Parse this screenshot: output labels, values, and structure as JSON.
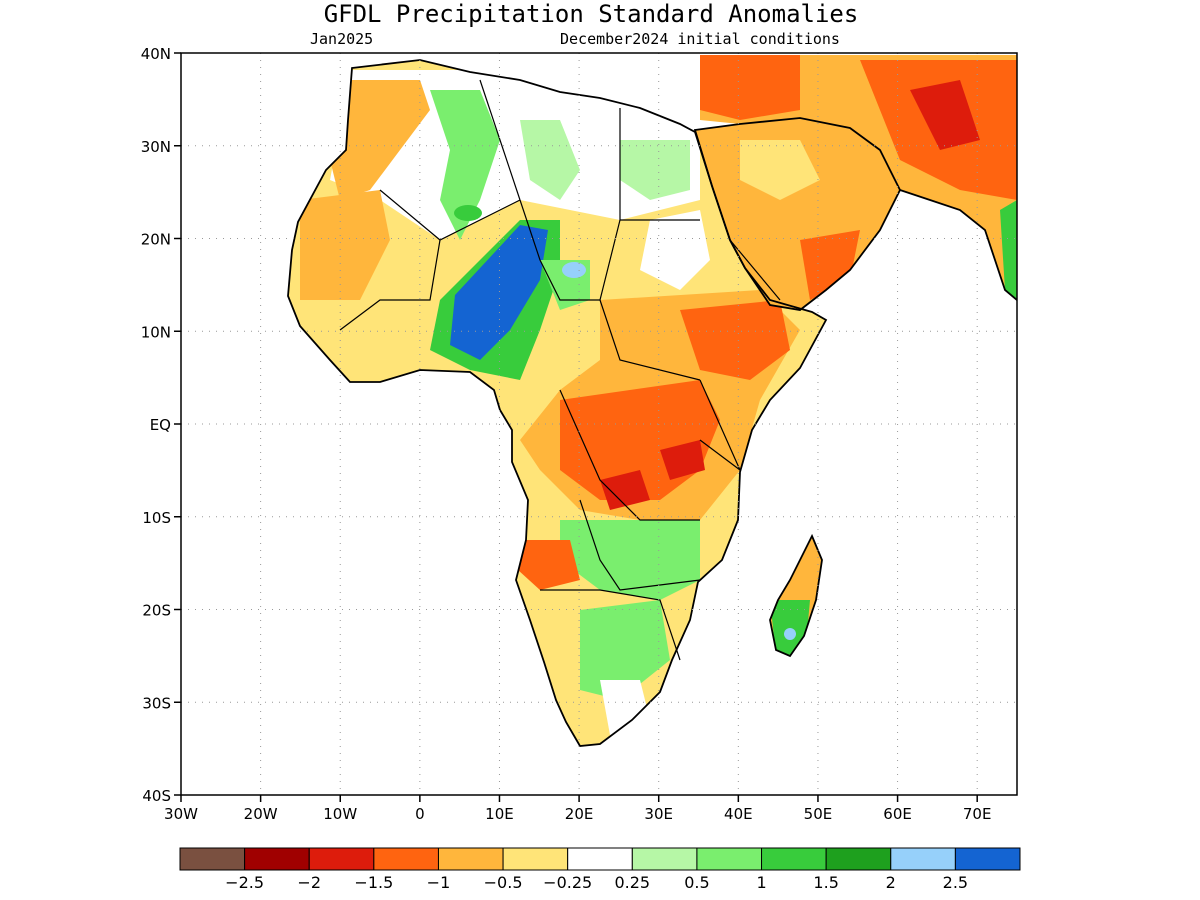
{
  "title": "GFDL Precipitation Standard Anomalies",
  "subtitle_left": "Jan2025",
  "subtitle_right": "December2024 initial conditions",
  "lat_labels": [
    "40N",
    "30N",
    "20N",
    "10N",
    "EQ",
    "10S",
    "20S",
    "30S",
    "40S"
  ],
  "lon_labels": [
    "30W",
    "20W",
    "10W",
    "0",
    "10E",
    "20E",
    "30E",
    "40E",
    "50E",
    "60E",
    "70E"
  ],
  "legend": {
    "colors": [
      "#7a5040",
      "#a00000",
      "#dd1c0c",
      "#ff6410",
      "#ffb63c",
      "#ffe478",
      "#ffffff",
      "#b6f7a6",
      "#7aee6e",
      "#38cc3c",
      "#1ea01e",
      "#96d0fa",
      "#1464d2"
    ],
    "labels": [
      "-2.5",
      "-2",
      "-1.5",
      "-1",
      "-0.5",
      "-0.25",
      "0.25",
      "0.5",
      "1",
      "1.5",
      "2",
      "2.5"
    ]
  },
  "colors": {
    "land_default": "#ffe478",
    "water": "#ffffff",
    "boundary": "#000000",
    "grid": "#999999"
  }
}
